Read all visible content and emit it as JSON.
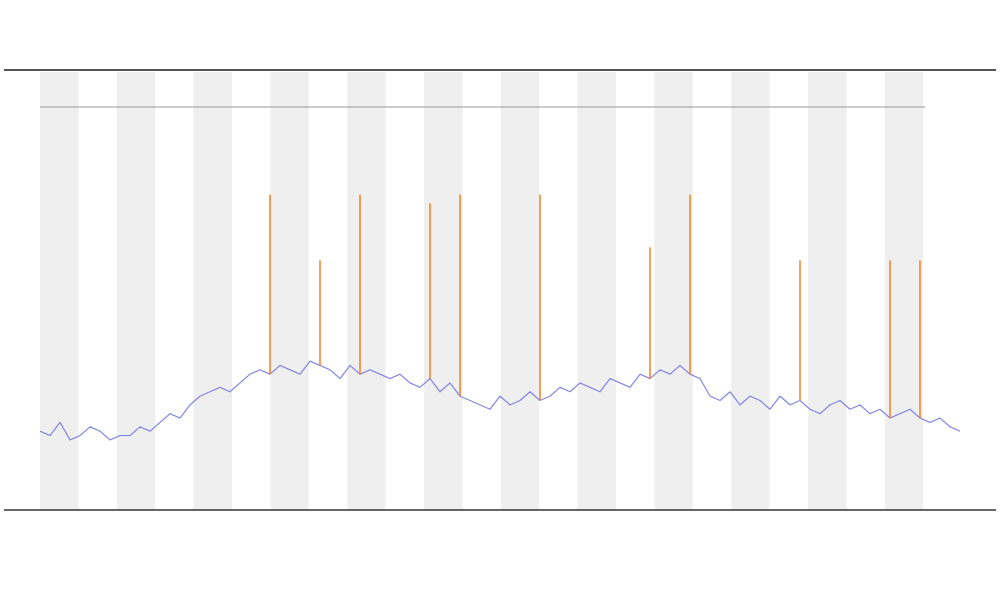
{
  "chart_data": {
    "type": "line",
    "ylim": [
      0,
      100
    ],
    "series": [
      {
        "color": "#7070e0",
        "values": [
          18,
          17,
          20,
          16,
          17,
          19,
          18,
          16,
          17,
          17,
          19,
          18,
          20,
          22,
          21,
          24,
          26,
          27,
          28,
          27,
          29,
          31,
          32,
          31,
          33,
          32,
          31,
          34,
          33,
          32,
          30,
          33,
          31,
          32,
          31,
          30,
          31,
          29,
          28,
          30,
          27,
          29,
          26,
          25,
          24,
          23,
          26,
          24,
          25,
          27,
          25,
          26,
          28,
          27,
          29,
          28,
          27,
          30,
          29,
          28,
          31,
          30,
          32,
          31,
          33,
          31,
          30,
          26,
          25,
          27,
          24,
          26,
          25,
          23,
          26,
          24,
          25,
          23,
          22,
          24,
          25,
          23,
          24,
          22,
          23,
          21,
          22,
          23,
          21,
          20,
          21,
          19,
          18
        ]
      },
      {
        "color": "#f08020",
        "values": [
          null,
          null,
          null,
          null,
          null,
          null,
          null,
          null,
          null,
          null,
          null,
          null,
          null,
          null,
          null,
          null,
          null,
          null,
          null,
          null,
          null,
          null,
          null,
          72,
          null,
          null,
          null,
          null,
          57,
          null,
          null,
          null,
          72,
          null,
          null,
          null,
          null,
          null,
          null,
          70,
          null,
          null,
          72,
          null,
          null,
          null,
          null,
          null,
          null,
          null,
          72,
          null,
          null,
          null,
          null,
          null,
          null,
          null,
          null,
          null,
          null,
          60,
          null,
          null,
          null,
          72,
          null,
          null,
          null,
          null,
          null,
          null,
          null,
          null,
          null,
          null,
          57,
          null,
          null,
          null,
          null,
          null,
          null,
          null,
          null,
          57,
          null,
          null,
          57,
          null,
          null,
          null,
          null
        ]
      }
    ]
  }
}
